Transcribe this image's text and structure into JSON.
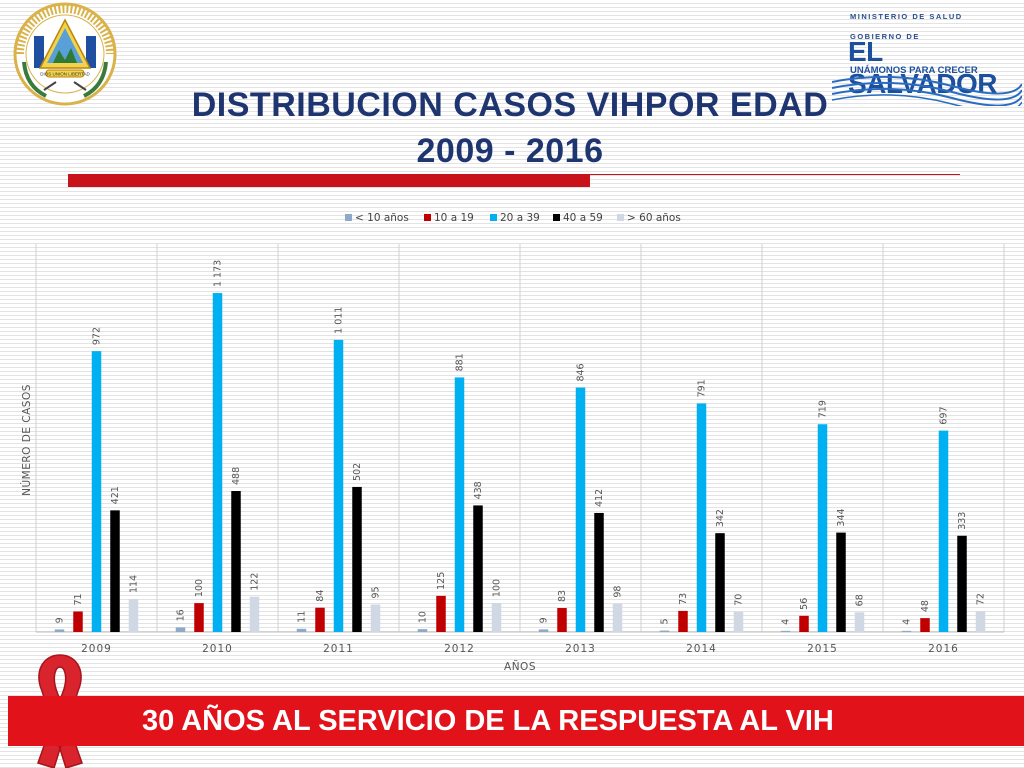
{
  "slide": {
    "title_line1": "DISTRIBUCION CASOS VIHPOR EDAD",
    "title_line2": "2009 - 2016",
    "banner": "30 AÑOS AL SERVICIO DE LA RESPUESTA AL VIH"
  },
  "logo": {
    "ministry": "MINISTERIO DE SALUD",
    "gov_prefix": "GOBIERNO DE",
    "country": "EL SALVADOR",
    "slogan": "UNÁMONOS PARA CRECER",
    "seal_text": "REPUBLICA DE EL SALVADOR EN LA AMERICA CENTRAL",
    "seal_motto": "DIOS UNION LIBERTAD"
  },
  "colors": {
    "title": "#1f3570",
    "red_accent": "#c8131b",
    "banner": "#e1121a"
  },
  "chart_data": {
    "type": "bar",
    "categories": [
      "2009",
      "2010",
      "2011",
      "2012",
      "2013",
      "2014",
      "2015",
      "2016"
    ],
    "series": [
      {
        "name": "< 10 años",
        "color": "#8eaac8",
        "values": [
          9,
          16,
          11,
          10,
          9,
          5,
          4,
          4
        ]
      },
      {
        "name": "10 a 19",
        "color": "#c00000",
        "values": [
          71,
          100,
          84,
          125,
          83,
          73,
          56,
          48
        ]
      },
      {
        "name": "20 a 39",
        "color": "#00b0f0",
        "values": [
          972,
          1173,
          1011,
          881,
          846,
          791,
          719,
          697
        ]
      },
      {
        "name": "40 a 59",
        "color": "#000000",
        "values": [
          421,
          488,
          502,
          438,
          412,
          342,
          344,
          333
        ]
      },
      {
        "name": "> 60 años",
        "color": "#cfd8e3",
        "values": [
          114,
          122,
          95,
          100,
          98,
          70,
          68,
          72
        ]
      }
    ],
    "value_labels": [
      [
        "9",
        "71",
        "972",
        "421",
        "114"
      ],
      [
        "16",
        "100",
        "1 173",
        "488",
        "122"
      ],
      [
        "11",
        "84",
        "1 011",
        "502",
        "95"
      ],
      [
        "10",
        "125",
        "881",
        "438",
        "100"
      ],
      [
        "9",
        "83",
        "846",
        "412",
        "98"
      ],
      [
        "5",
        "73",
        "791",
        "342",
        "70"
      ],
      [
        "4",
        "56",
        "719",
        "344",
        "68"
      ],
      [
        "4",
        "48",
        "697",
        "333",
        "72"
      ]
    ],
    "xlabel": "AÑOS",
    "ylabel": "NÚMERO DE CASOS",
    "ylim": [
      0,
      1200
    ],
    "legend_position": "top",
    "grid": "vertical separators"
  }
}
